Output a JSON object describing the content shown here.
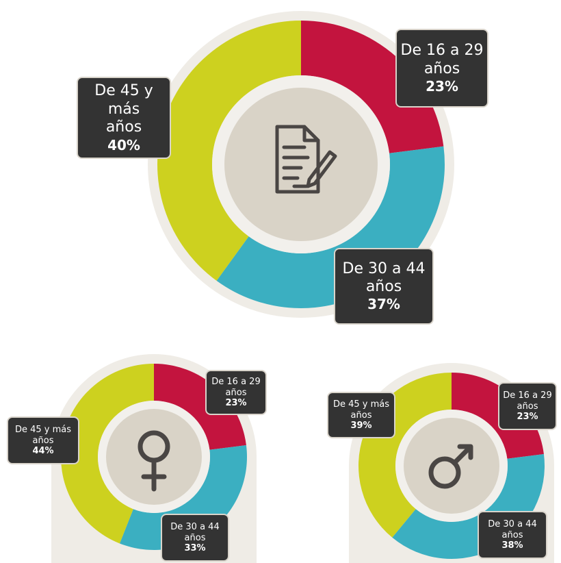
{
  "chart_data": [
    {
      "type": "pie",
      "categories": [
        "De 16 a 29\naños",
        "De 30 a 44\naños",
        "De 45 y más\naños"
      ],
      "values": [
        23,
        37,
        40
      ],
      "value_labels": [
        "23%",
        "37%",
        "40%"
      ],
      "colors": [
        "#c3143e",
        "#3bafc1",
        "#cdd11f"
      ]
    },
    {
      "type": "pie",
      "categories": [
        "De 16 a 29\naños",
        "De 30 a 44\naños",
        "De 45 y más\naños"
      ],
      "values": [
        23,
        33,
        44
      ],
      "value_labels": [
        "23%",
        "33%",
        "44%"
      ],
      "colors": [
        "#c3143e",
        "#3bafc1",
        "#cdd11f"
      ]
    },
    {
      "type": "pie",
      "categories": [
        "De 16 a 29\naños",
        "De 30 a 44\naños",
        "De 45 y más\naños"
      ],
      "values": [
        23,
        38,
        39
      ],
      "value_labels": [
        "23%",
        "38%",
        "39%"
      ],
      "colors": [
        "#c3143e",
        "#3bafc1",
        "#cdd11f"
      ]
    }
  ]
}
